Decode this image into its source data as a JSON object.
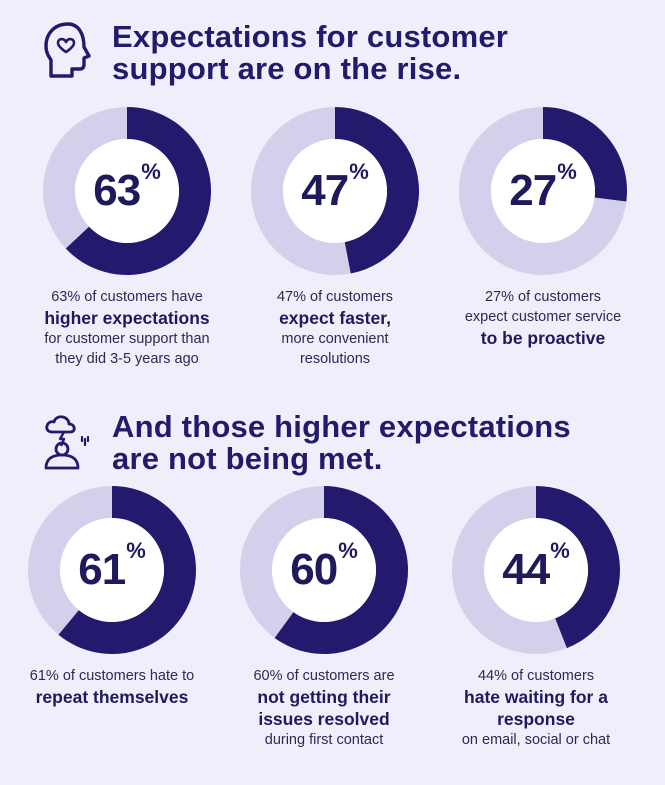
{
  "section1": {
    "title_line1": "Expectations for customer",
    "title_line2": "support are on the rise.",
    "icon": "head-heart-icon"
  },
  "section2": {
    "title_line1": "And those higher expectations",
    "title_line2": "are not being met.",
    "icon": "stressed-person-cloud-icon"
  },
  "colors": {
    "background": "#f0eefb",
    "filled": "#231a6e",
    "track": "#d4d0ec",
    "inner": "#ffffff",
    "text": "#1e1a5c"
  },
  "chart_data": [
    {
      "type": "pie",
      "values": [
        63,
        37
      ],
      "label": "63",
      "caption": {
        "pre": "63% of customers have",
        "bold": "higher expectations",
        "post1": "for customer support than",
        "post2": "they did 3-5 years ago"
      }
    },
    {
      "type": "pie",
      "values": [
        47,
        53
      ],
      "label": "47",
      "caption": {
        "pre": "47% of customers",
        "bold": "expect faster,",
        "post1": "more convenient",
        "post2": "resolutions"
      }
    },
    {
      "type": "pie",
      "values": [
        27,
        73
      ],
      "label": "27",
      "caption": {
        "pre": "27% of customers",
        "pre2": "expect customer service",
        "bold": "to be proactive"
      }
    },
    {
      "type": "pie",
      "values": [
        61,
        39
      ],
      "label": "61",
      "caption": {
        "pre": "61% of customers hate to",
        "bold": "repeat themselves"
      }
    },
    {
      "type": "pie",
      "values": [
        60,
        40
      ],
      "label": "60",
      "caption": {
        "pre": "60% of customers are",
        "bold": "not getting their",
        "bold2": "issues resolved",
        "post1": "during first contact"
      }
    },
    {
      "type": "pie",
      "values": [
        44,
        56
      ],
      "label": "44",
      "caption": {
        "pre": "44% of customers",
        "bold": "hate waiting for a",
        "bold2": "response",
        "post1": "on email, social or chat"
      }
    }
  ],
  "percent_sign": "%"
}
